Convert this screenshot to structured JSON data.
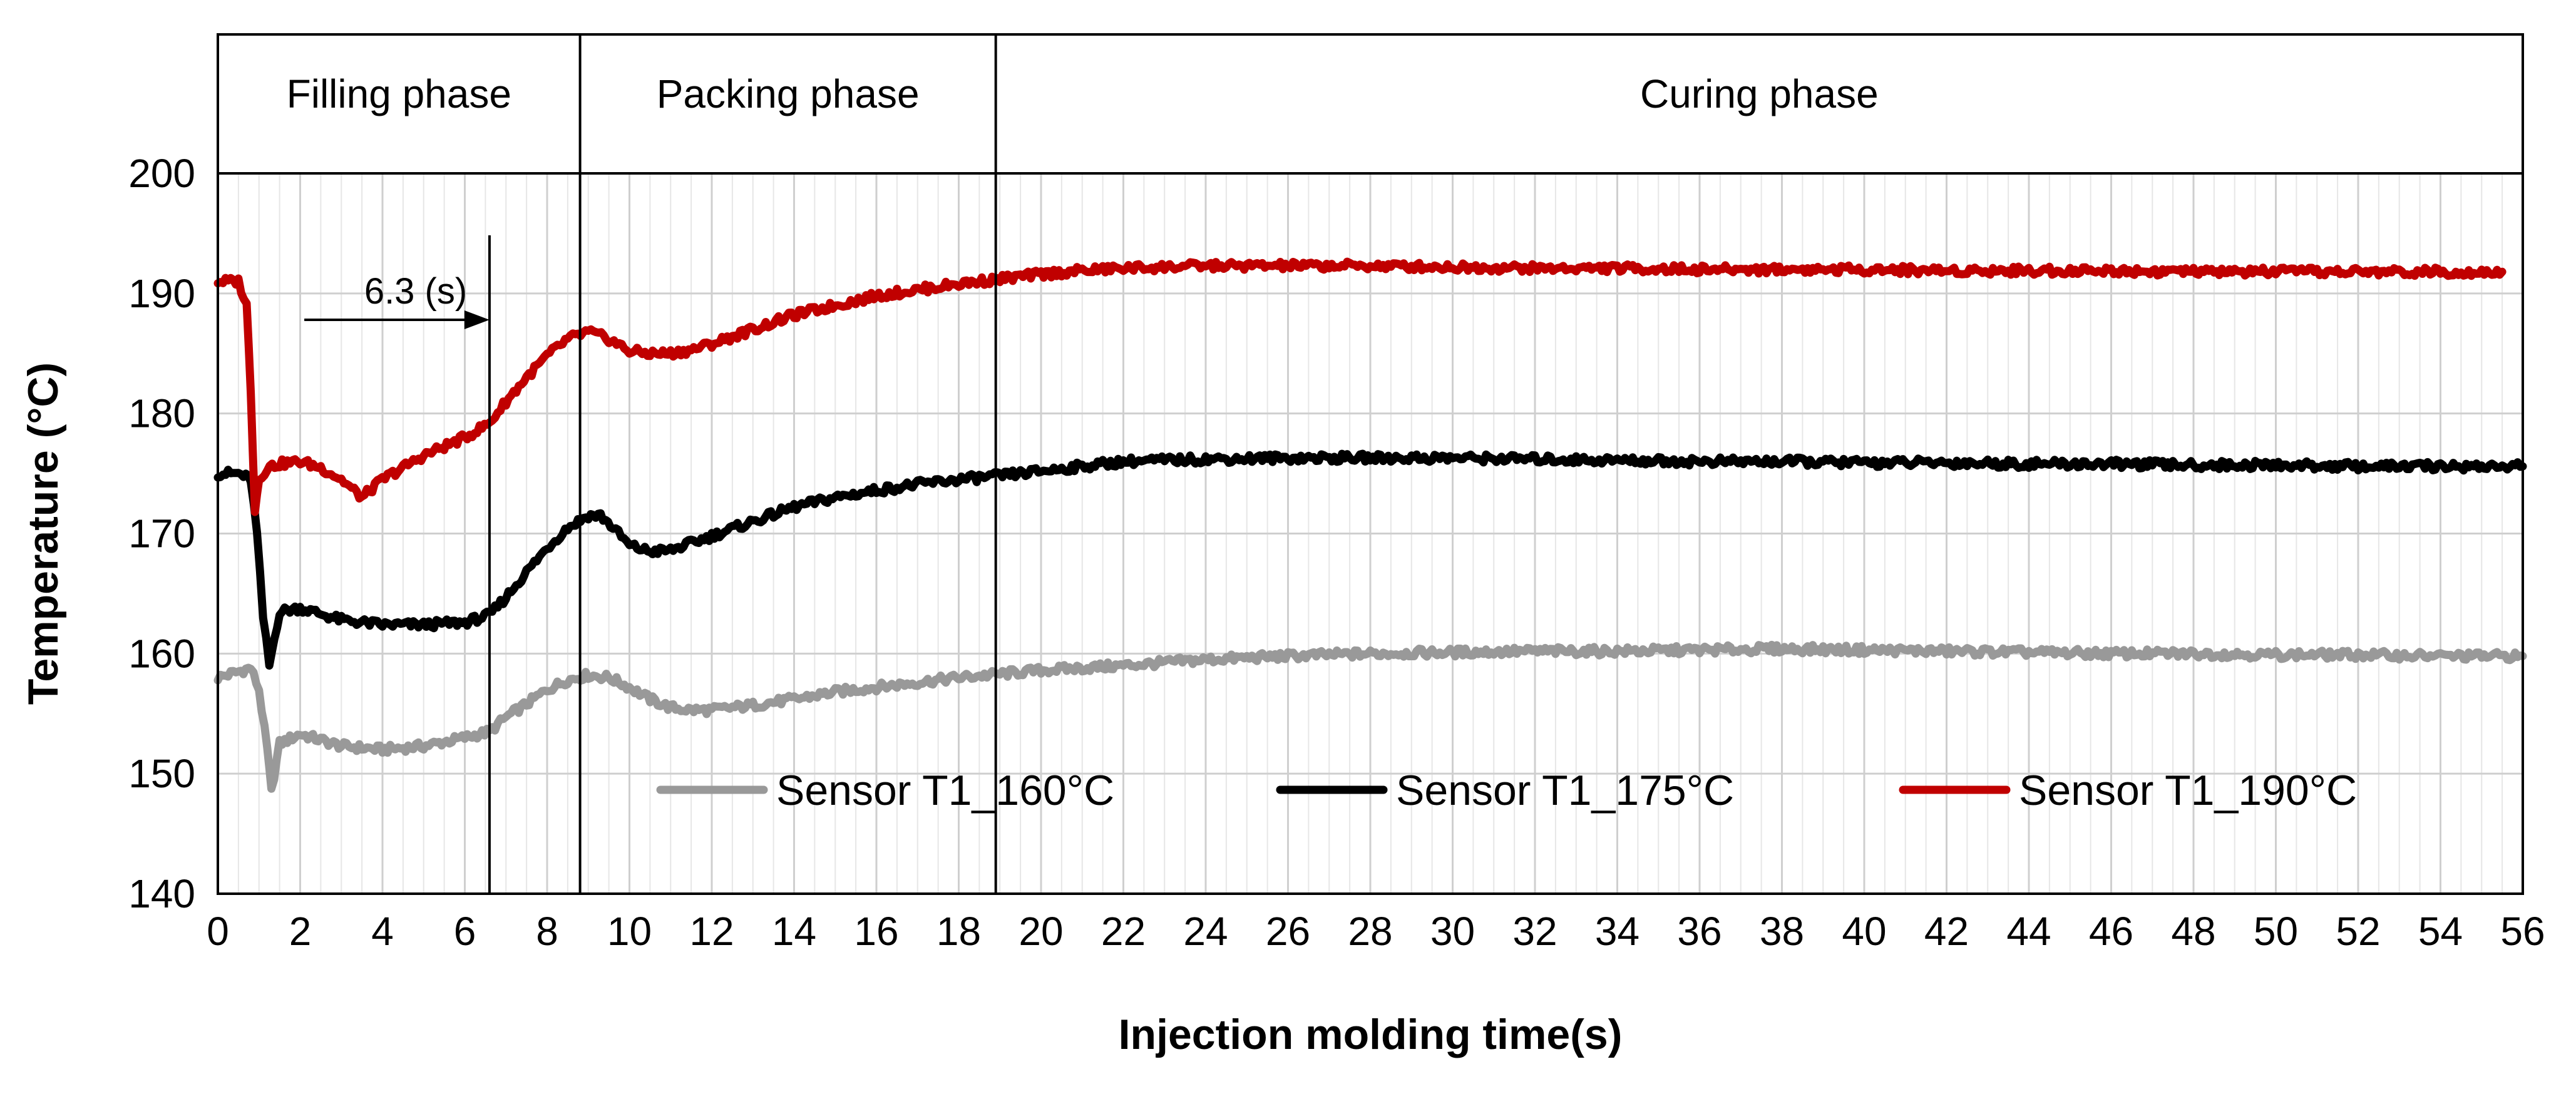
{
  "chart_data": {
    "type": "line",
    "title": "",
    "xlabel": "Injection molding time(s)",
    "ylabel": "Temperature (°C)",
    "xlim": [
      0,
      56
    ],
    "ylim": [
      140,
      200
    ],
    "grid": true,
    "x_ticks": [
      0,
      2,
      4,
      6,
      8,
      10,
      12,
      14,
      16,
      18,
      20,
      22,
      24,
      26,
      28,
      30,
      32,
      34,
      36,
      38,
      40,
      42,
      44,
      46,
      48,
      50,
      52,
      54,
      56
    ],
    "y_ticks": [
      140,
      150,
      160,
      170,
      180,
      190,
      200
    ],
    "legend_position": "bottom-right inside plot",
    "phases": [
      {
        "label": "Filling phase",
        "start": 0,
        "end": 8.8
      },
      {
        "label": "Packing phase",
        "start": 8.8,
        "end": 18.9
      },
      {
        "label": "Curing phase",
        "start": 18.9,
        "end": 56
      }
    ],
    "annotations": [
      {
        "text": "6.3 (s)",
        "arrow_from_x": 2.1,
        "arrow_to_x": 6.6,
        "y": 187.8,
        "marker_x": 6.6
      }
    ],
    "series": [
      {
        "name": "Sensor T1_160°C",
        "color": "#999999",
        "x": [
          0,
          0.5,
          0.8,
          1.0,
          1.2,
          1.3,
          1.5,
          2,
          3,
          4,
          5,
          6,
          6.6,
          7,
          7.5,
          8,
          8.5,
          9,
          9.5,
          10,
          10.5,
          11,
          11.5,
          12,
          13,
          14,
          15,
          16,
          17,
          18,
          19,
          20,
          22,
          24,
          26,
          28,
          30,
          32,
          34,
          36,
          38,
          40,
          42,
          44,
          46,
          48,
          50,
          52,
          54,
          56
        ],
        "y": [
          158,
          158.5,
          158.8,
          157,
          152,
          148.5,
          152.5,
          153.3,
          152.3,
          152.0,
          152.3,
          153.0,
          153.5,
          154.7,
          155.8,
          157.0,
          157.8,
          158.2,
          158.0,
          157.2,
          156.2,
          155.5,
          155.3,
          155.3,
          155.7,
          156.2,
          156.8,
          157.2,
          157.6,
          158.0,
          158.3,
          158.6,
          159.0,
          159.5,
          159.8,
          160.0,
          160.1,
          160.2,
          160.2,
          160.3,
          160.4,
          160.3,
          160.2,
          160.1,
          160.0,
          160.0,
          159.9,
          159.9,
          159.8,
          159.8
        ]
      },
      {
        "name": "Sensor T1_175°C",
        "color": "#000000",
        "x": [
          0,
          0.5,
          0.8,
          0.95,
          1.1,
          1.25,
          1.5,
          2,
          3,
          4,
          5,
          6,
          6.6,
          7,
          7.5,
          8,
          8.5,
          9,
          9.3,
          9.6,
          10,
          10.5,
          11,
          11.5,
          12,
          13,
          14,
          15,
          16,
          17,
          18,
          19,
          20,
          21,
          22,
          23,
          24,
          26,
          28,
          30,
          32,
          34,
          36,
          38,
          40,
          42,
          44,
          46,
          48,
          50,
          52,
          54,
          56
        ],
        "y": [
          175,
          175,
          174.5,
          170,
          163,
          159,
          163.5,
          163.8,
          162.8,
          162.4,
          162.4,
          162.6,
          163.2,
          164.7,
          166.8,
          168.8,
          170.5,
          171.5,
          171.5,
          170.5,
          169.0,
          168.5,
          168.6,
          169.2,
          169.8,
          171.0,
          172.2,
          173.0,
          173.6,
          174.1,
          174.5,
          174.8,
          175.2,
          175.6,
          176.0,
          176.1,
          176.2,
          176.3,
          176.3,
          176.3,
          176.2,
          176.1,
          176.0,
          176.0,
          175.9,
          175.9,
          175.8,
          175.8,
          175.7,
          175.7,
          175.6,
          175.6,
          175.6
        ]
      },
      {
        "name": "Sensor T1_190°C",
        "color": "#c00000",
        "x": [
          0,
          0.5,
          0.7,
          0.8,
          0.9,
          1.0,
          1.2,
          1.5,
          2,
          2.5,
          3,
          3.5,
          4,
          5,
          6,
          6.6,
          7,
          7.5,
          8,
          8.5,
          9,
          9.5,
          10,
          10.5,
          11,
          11.5,
          12,
          13,
          14,
          15,
          16,
          17,
          18,
          19,
          20,
          21,
          22,
          23,
          24,
          26,
          28,
          30,
          32,
          34,
          36,
          38,
          40,
          42,
          44,
          46,
          48,
          50,
          52,
          54,
          55.5
        ],
        "y": [
          191,
          191,
          189,
          182,
          172,
          174.5,
          175.5,
          175.8,
          176,
          175.5,
          174.5,
          173,
          174.5,
          176.5,
          178.0,
          179.2,
          181.0,
          183.0,
          184.8,
          186.2,
          186.8,
          186.2,
          185.2,
          185.0,
          185.0,
          185.3,
          185.8,
          187.0,
          188.2,
          189.0,
          189.8,
          190.3,
          190.8,
          191.2,
          191.6,
          191.9,
          192.1,
          192.2,
          192.3,
          192.3,
          192.3,
          192.2,
          192.1,
          192.1,
          192.0,
          192.0,
          192.0,
          191.9,
          191.9,
          191.9,
          191.8,
          191.8,
          191.8,
          191.8,
          191.8
        ]
      }
    ]
  }
}
